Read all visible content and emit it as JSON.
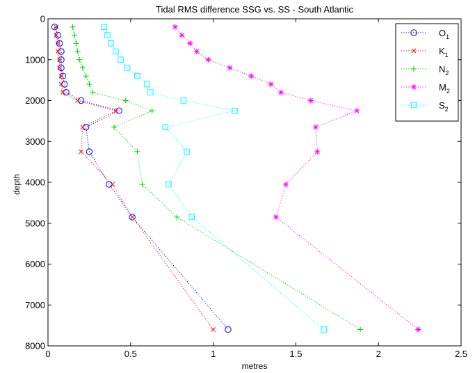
{
  "chart_data": {
    "type": "line",
    "title": "Tidal RMS difference SSG vs. SS - South Atlantic",
    "xlabel": "metres",
    "ylabel": "depth",
    "xlim": [
      0,
      2.5
    ],
    "ylim": [
      8000,
      0
    ],
    "y_reversed": true,
    "grid": false,
    "legend_position": "top-right",
    "x_ticks": [
      0,
      0.5,
      1,
      1.5,
      2,
      2.5
    ],
    "x_tick_labels": [
      "0",
      "0.5",
      "1",
      "1.5",
      "2",
      "2.5"
    ],
    "y_ticks": [
      0,
      1000,
      2000,
      3000,
      4000,
      5000,
      6000,
      7000,
      8000
    ],
    "y_tick_labels": [
      "0",
      "1000",
      "2000",
      "3000",
      "4000",
      "5000",
      "6000",
      "7000",
      "8000"
    ],
    "series": [
      {
        "name": "O",
        "subscript": "1",
        "color": "#0000ff",
        "marker": "circle",
        "points": [
          [
            0.04,
            200
          ],
          [
            0.06,
            400
          ],
          [
            0.07,
            600
          ],
          [
            0.08,
            800
          ],
          [
            0.08,
            1000
          ],
          [
            0.08,
            1200
          ],
          [
            0.09,
            1400
          ],
          [
            0.1,
            1600
          ],
          [
            0.11,
            1800
          ],
          [
            0.2,
            2000
          ],
          [
            0.43,
            2250
          ],
          [
            0.23,
            2650
          ],
          [
            0.25,
            3250
          ],
          [
            0.37,
            4050
          ],
          [
            0.51,
            4850
          ],
          [
            1.09,
            7600
          ]
        ]
      },
      {
        "name": "K",
        "subscript": "1",
        "color": "#ff0000",
        "marker": "x",
        "points": [
          [
            0.05,
            200
          ],
          [
            0.05,
            400
          ],
          [
            0.06,
            600
          ],
          [
            0.06,
            800
          ],
          [
            0.07,
            1000
          ],
          [
            0.07,
            1200
          ],
          [
            0.08,
            1400
          ],
          [
            0.08,
            1600
          ],
          [
            0.09,
            1800
          ],
          [
            0.18,
            2000
          ],
          [
            0.41,
            2250
          ],
          [
            0.21,
            2650
          ],
          [
            0.2,
            3250
          ],
          [
            0.39,
            4050
          ],
          [
            0.51,
            4850
          ],
          [
            1.0,
            7600
          ]
        ]
      },
      {
        "name": "N",
        "subscript": "2",
        "color": "#00cc00",
        "marker": "plus",
        "points": [
          [
            0.15,
            200
          ],
          [
            0.16,
            400
          ],
          [
            0.17,
            600
          ],
          [
            0.18,
            800
          ],
          [
            0.19,
            1000
          ],
          [
            0.21,
            1200
          ],
          [
            0.23,
            1400
          ],
          [
            0.25,
            1600
          ],
          [
            0.27,
            1800
          ],
          [
            0.47,
            2000
          ],
          [
            0.63,
            2250
          ],
          [
            0.4,
            2650
          ],
          [
            0.54,
            3250
          ],
          [
            0.57,
            4050
          ],
          [
            0.78,
            4850
          ],
          [
            1.89,
            7600
          ]
        ]
      },
      {
        "name": "M",
        "subscript": "2",
        "color": "#ff00ff",
        "marker": "asterisk",
        "points": [
          [
            0.77,
            200
          ],
          [
            0.81,
            400
          ],
          [
            0.86,
            600
          ],
          [
            0.9,
            800
          ],
          [
            0.97,
            1000
          ],
          [
            1.1,
            1200
          ],
          [
            1.23,
            1400
          ],
          [
            1.35,
            1600
          ],
          [
            1.41,
            1800
          ],
          [
            1.59,
            2000
          ],
          [
            1.87,
            2250
          ],
          [
            1.62,
            2650
          ],
          [
            1.63,
            3250
          ],
          [
            1.44,
            4050
          ],
          [
            1.38,
            4850
          ],
          [
            2.24,
            7600
          ]
        ]
      },
      {
        "name": "S",
        "subscript": "2",
        "color": "#00ffff",
        "marker": "square",
        "points": [
          [
            0.34,
            200
          ],
          [
            0.36,
            400
          ],
          [
            0.38,
            600
          ],
          [
            0.41,
            800
          ],
          [
            0.44,
            1000
          ],
          [
            0.48,
            1200
          ],
          [
            0.54,
            1400
          ],
          [
            0.6,
            1600
          ],
          [
            0.62,
            1800
          ],
          [
            0.82,
            2000
          ],
          [
            1.13,
            2250
          ],
          [
            0.71,
            2650
          ],
          [
            0.84,
            3250
          ],
          [
            0.73,
            4050
          ],
          [
            0.87,
            4850
          ],
          [
            1.67,
            7600
          ]
        ]
      }
    ]
  }
}
